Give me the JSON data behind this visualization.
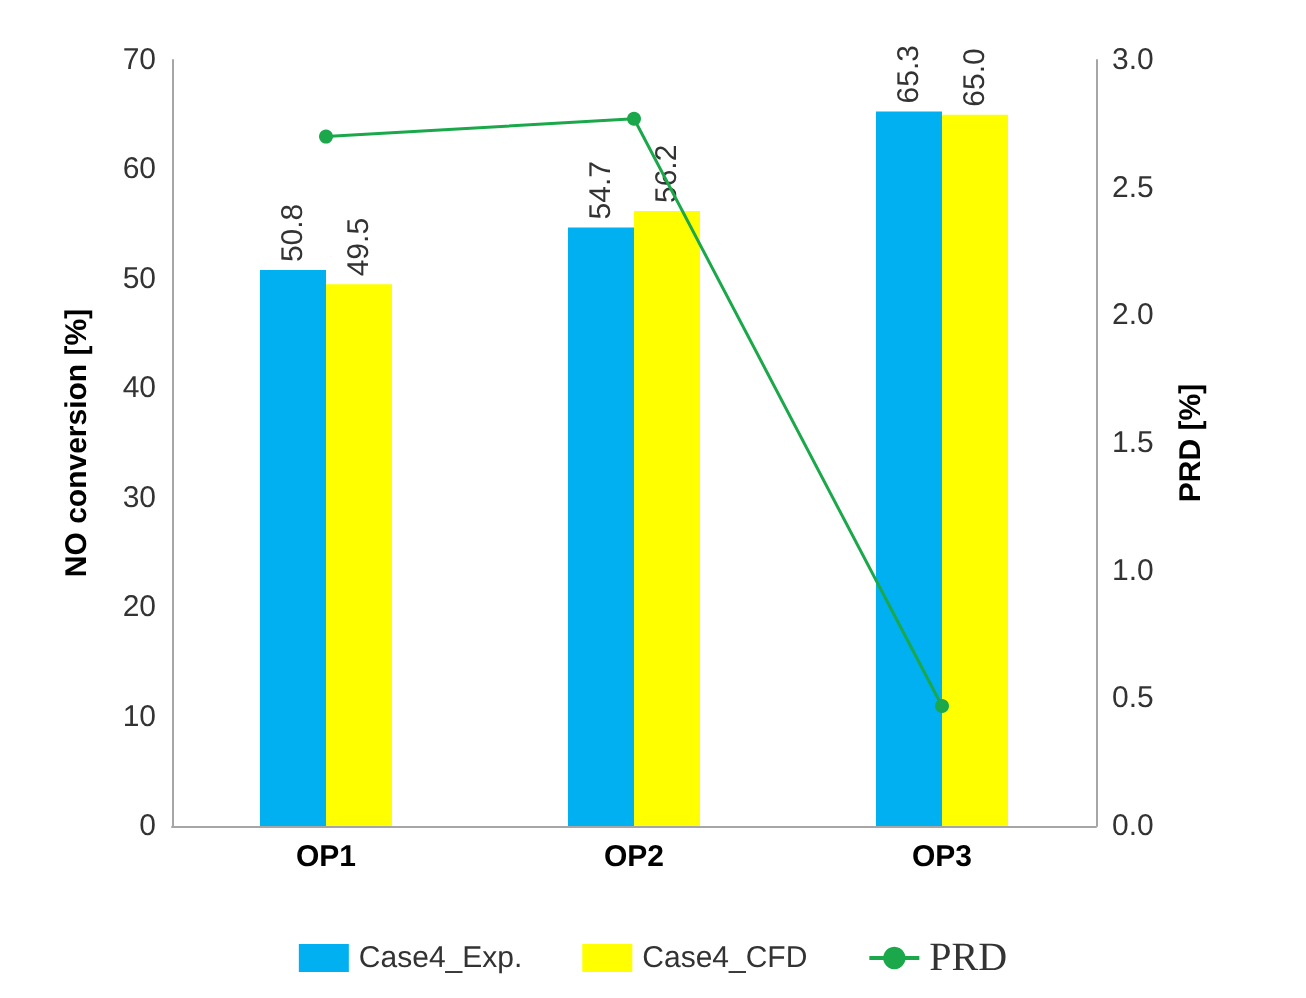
{
  "chart_data": {
    "type": "bar",
    "ylabel": "NO conversion [%]",
    "y2label": "PRD [%]",
    "categories": [
      "OP1",
      "OP2",
      "OP3"
    ],
    "series": [
      {
        "name": "Case4_Exp.",
        "color": "#00b0f0",
        "values": [
          50.8,
          54.7,
          65.3
        ],
        "value_labels": [
          "50.8",
          "54.7",
          "65.3"
        ]
      },
      {
        "name": "Case4_CFD",
        "color": "#ffff00",
        "values": [
          49.5,
          56.2,
          65.0
        ],
        "value_labels": [
          "49.5",
          "56.2",
          "65.0"
        ]
      },
      {
        "name": "PRD",
        "type": "line",
        "axis": "y2",
        "color": "#1aa84a",
        "marker": "circle",
        "values": [
          2.7,
          2.77,
          0.47
        ]
      }
    ],
    "ylim": [
      0,
      70
    ],
    "yticks": [
      0,
      10,
      20,
      30,
      40,
      50,
      60,
      70
    ],
    "y2lim": [
      0,
      3
    ],
    "y2ticks": [
      {
        "value": 0,
        "label": "0.0"
      },
      {
        "value": 0.5,
        "label": "0.5"
      },
      {
        "value": 1,
        "label": "1.0"
      },
      {
        "value": 1.5,
        "label": "1.5"
      },
      {
        "value": 2,
        "label": "2.0"
      },
      {
        "value": 2.5,
        "label": "2.5"
      },
      {
        "value": 3,
        "label": "3.0"
      }
    ],
    "grid": false,
    "legend": "bottom"
  }
}
